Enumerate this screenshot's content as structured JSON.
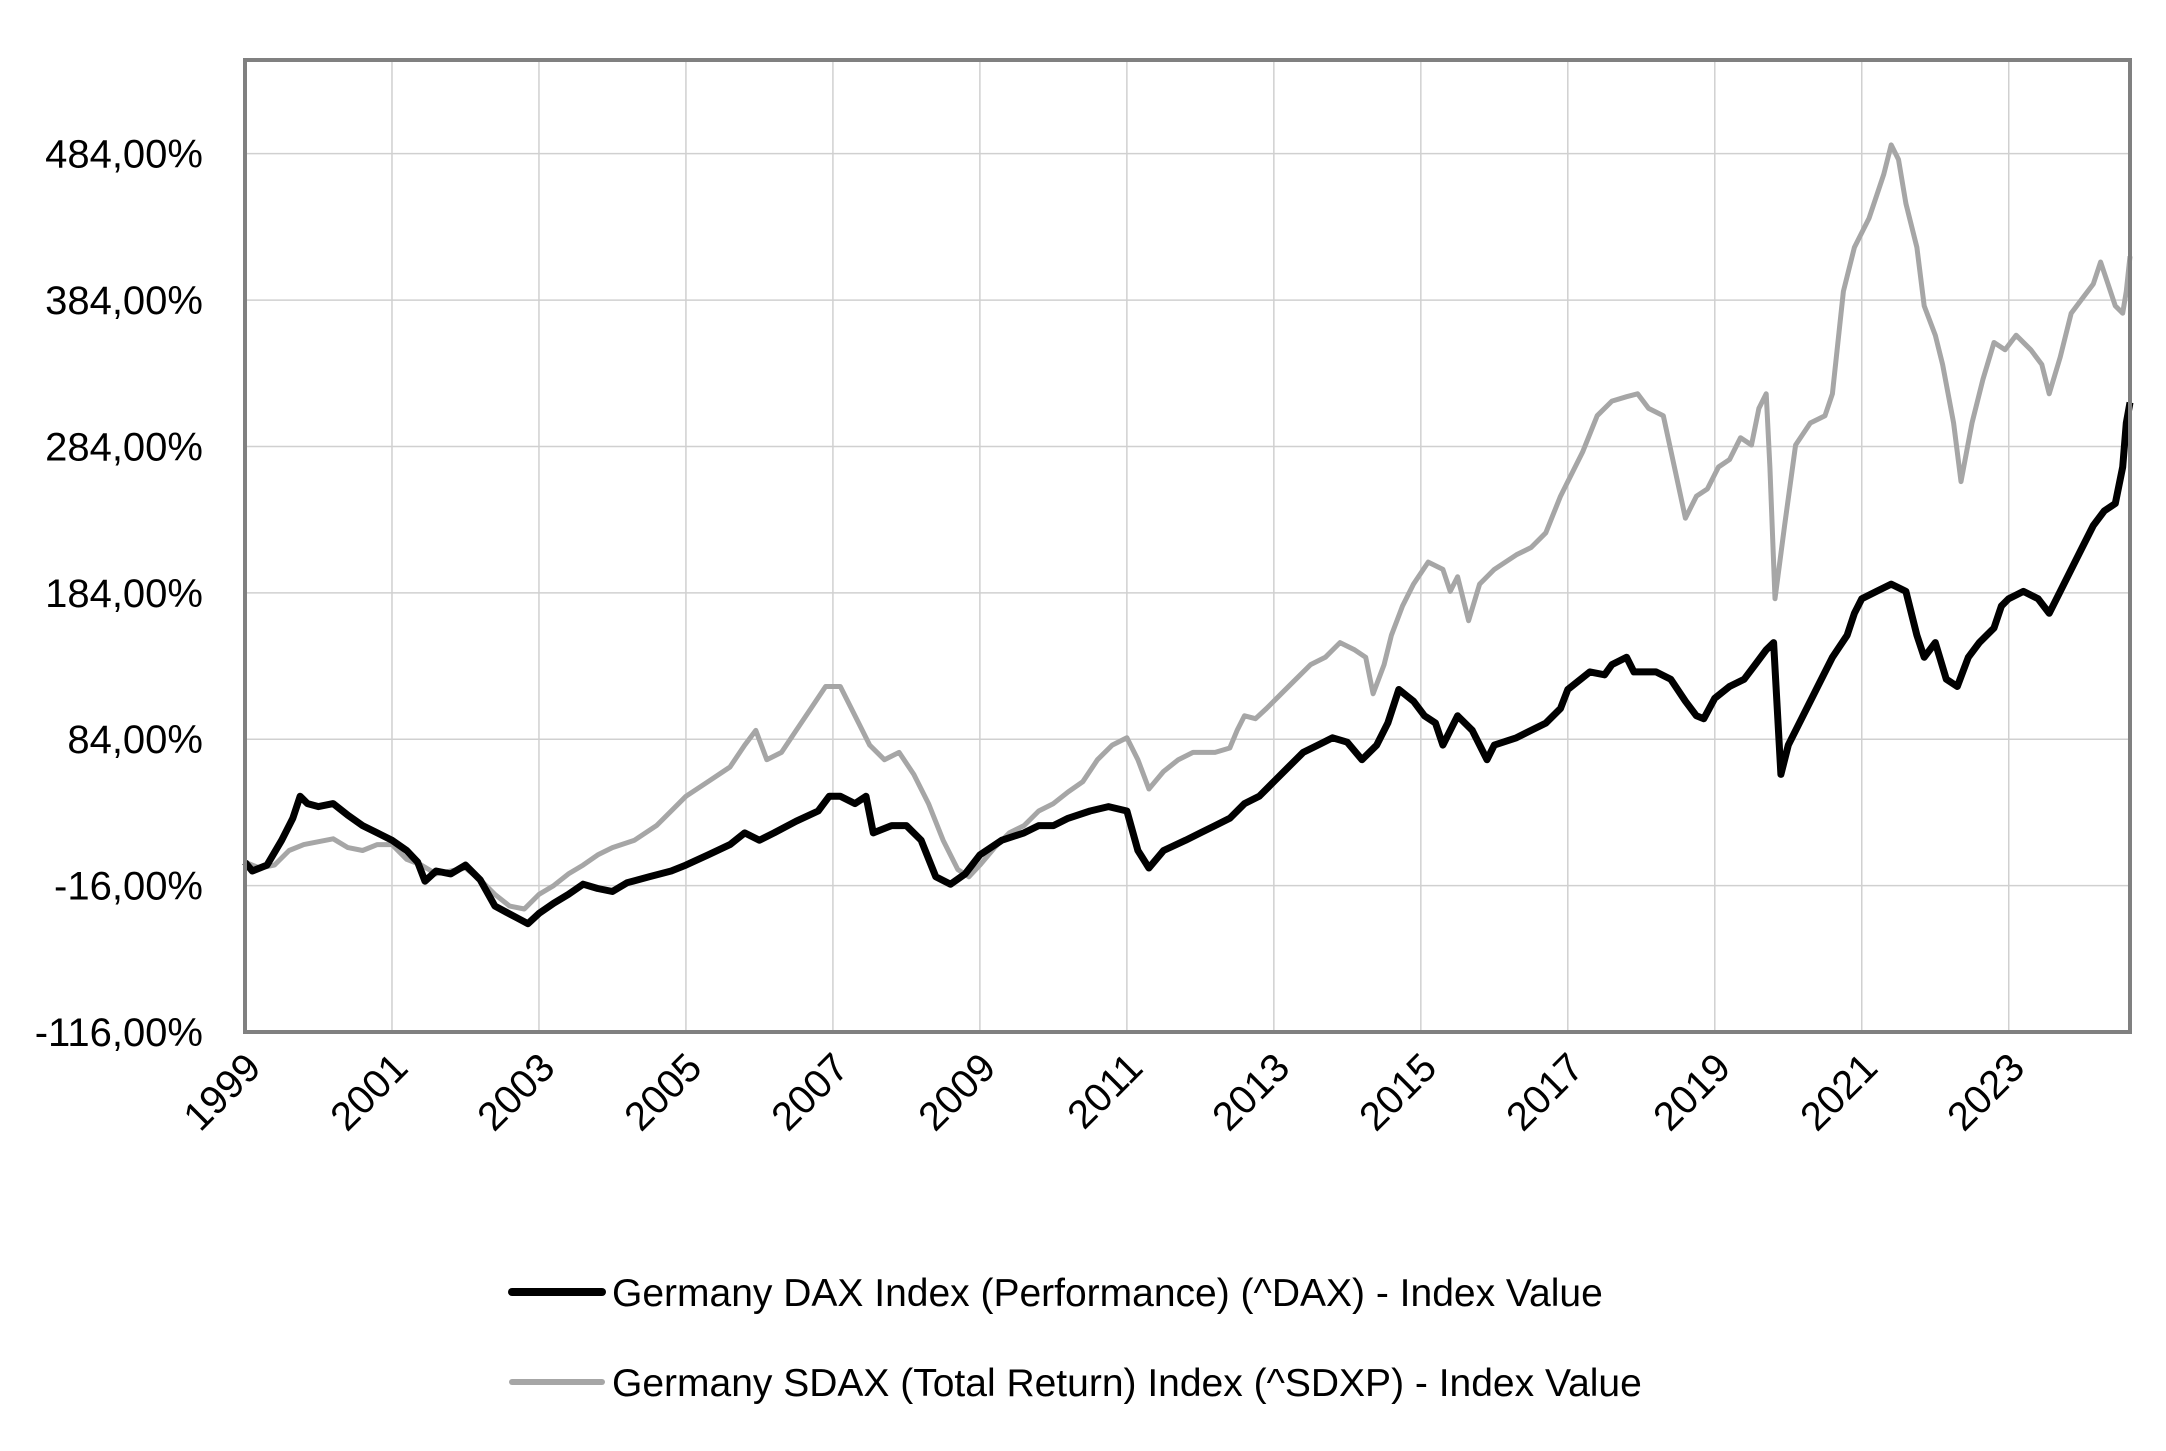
{
  "chart_data": {
    "type": "line",
    "title": "",
    "xlabel": "",
    "ylabel": "",
    "x_range": [
      1999.0,
      2024.65
    ],
    "y_range": [
      -116,
      548
    ],
    "y_ticks": [
      -116,
      -16,
      84,
      184,
      284,
      384,
      484
    ],
    "y_tick_labels": [
      "-116,00%",
      "-16,00%",
      "84,00%",
      "184,00%",
      "284,00%",
      "384,00%",
      "484,00%"
    ],
    "x_ticks": [
      1999,
      2001,
      2003,
      2005,
      2007,
      2009,
      2011,
      2013,
      2015,
      2017,
      2019,
      2021,
      2023
    ],
    "x_tick_labels": [
      "1999",
      "2001",
      "2003",
      "2005",
      "2007",
      "2009",
      "2011",
      "2013",
      "2015",
      "2017",
      "2019",
      "2021",
      "2023"
    ],
    "grid": true,
    "legend_position": "bottom-center",
    "series": [
      {
        "name": "Germany DAX Index (Performance) (^DAX) - Index Value",
        "color": "#000000",
        "points": [
          [
            1999.0,
            0
          ],
          [
            1999.1,
            -6
          ],
          [
            1999.3,
            -2
          ],
          [
            1999.5,
            15
          ],
          [
            1999.65,
            30
          ],
          [
            1999.75,
            45
          ],
          [
            1999.85,
            40
          ],
          [
            2000.0,
            38
          ],
          [
            2000.2,
            40
          ],
          [
            2000.4,
            32
          ],
          [
            2000.6,
            25
          ],
          [
            2000.8,
            20
          ],
          [
            2001.0,
            15
          ],
          [
            2001.2,
            8
          ],
          [
            2001.35,
            0
          ],
          [
            2001.45,
            -13
          ],
          [
            2001.6,
            -6
          ],
          [
            2001.8,
            -8
          ],
          [
            2002.0,
            -2
          ],
          [
            2002.2,
            -12
          ],
          [
            2002.4,
            -30
          ],
          [
            2002.55,
            -34
          ],
          [
            2002.7,
            -38
          ],
          [
            2002.85,
            -42
          ],
          [
            2003.0,
            -35
          ],
          [
            2003.2,
            -28
          ],
          [
            2003.4,
            -22
          ],
          [
            2003.6,
            -15
          ],
          [
            2003.8,
            -18
          ],
          [
            2004.0,
            -20
          ],
          [
            2004.2,
            -14
          ],
          [
            2004.5,
            -10
          ],
          [
            2004.8,
            -6
          ],
          [
            2005.0,
            -2
          ],
          [
            2005.3,
            5
          ],
          [
            2005.6,
            12
          ],
          [
            2005.8,
            20
          ],
          [
            2006.0,
            15
          ],
          [
            2006.2,
            20
          ],
          [
            2006.5,
            28
          ],
          [
            2006.8,
            35
          ],
          [
            2006.95,
            45
          ],
          [
            2007.1,
            45
          ],
          [
            2007.3,
            40
          ],
          [
            2007.45,
            45
          ],
          [
            2007.55,
            20
          ],
          [
            2007.8,
            25
          ],
          [
            2008.0,
            25
          ],
          [
            2008.2,
            15
          ],
          [
            2008.4,
            -10
          ],
          [
            2008.6,
            -15
          ],
          [
            2008.8,
            -8
          ],
          [
            2009.0,
            5
          ],
          [
            2009.3,
            15
          ],
          [
            2009.6,
            20
          ],
          [
            2009.8,
            25
          ],
          [
            2010.0,
            25
          ],
          [
            2010.2,
            30
          ],
          [
            2010.5,
            35
          ],
          [
            2010.75,
            38
          ],
          [
            2011.0,
            35
          ],
          [
            2011.15,
            8
          ],
          [
            2011.3,
            -4
          ],
          [
            2011.5,
            8
          ],
          [
            2011.8,
            15
          ],
          [
            2012.0,
            20
          ],
          [
            2012.2,
            25
          ],
          [
            2012.4,
            30
          ],
          [
            2012.6,
            40
          ],
          [
            2012.8,
            45
          ],
          [
            2013.0,
            55
          ],
          [
            2013.2,
            65
          ],
          [
            2013.4,
            75
          ],
          [
            2013.6,
            80
          ],
          [
            2013.8,
            85
          ],
          [
            2014.0,
            82
          ],
          [
            2014.2,
            70
          ],
          [
            2014.4,
            80
          ],
          [
            2014.55,
            95
          ],
          [
            2014.7,
            118
          ],
          [
            2014.9,
            110
          ],
          [
            2015.05,
            100
          ],
          [
            2015.2,
            95
          ],
          [
            2015.3,
            80
          ],
          [
            2015.5,
            100
          ],
          [
            2015.7,
            90
          ],
          [
            2015.9,
            70
          ],
          [
            2016.0,
            80
          ],
          [
            2016.3,
            85
          ],
          [
            2016.5,
            90
          ],
          [
            2016.7,
            95
          ],
          [
            2016.9,
            105
          ],
          [
            2017.0,
            118
          ],
          [
            2017.3,
            130
          ],
          [
            2017.5,
            128
          ],
          [
            2017.6,
            135
          ],
          [
            2017.8,
            140
          ],
          [
            2017.9,
            130
          ],
          [
            2018.0,
            130
          ],
          [
            2018.2,
            130
          ],
          [
            2018.4,
            125
          ],
          [
            2018.6,
            110
          ],
          [
            2018.75,
            100
          ],
          [
            2018.85,
            98
          ],
          [
            2019.0,
            112
          ],
          [
            2019.2,
            120
          ],
          [
            2019.4,
            125
          ],
          [
            2019.55,
            135
          ],
          [
            2019.7,
            145
          ],
          [
            2019.8,
            150
          ],
          [
            2019.9,
            60
          ],
          [
            2020.0,
            80
          ],
          [
            2020.2,
            100
          ],
          [
            2020.4,
            120
          ],
          [
            2020.6,
            140
          ],
          [
            2020.8,
            155
          ],
          [
            2020.9,
            170
          ],
          [
            2021.0,
            180
          ],
          [
            2021.2,
            185
          ],
          [
            2021.4,
            190
          ],
          [
            2021.6,
            185
          ],
          [
            2021.75,
            155
          ],
          [
            2021.85,
            140
          ],
          [
            2022.0,
            150
          ],
          [
            2022.15,
            125
          ],
          [
            2022.3,
            120
          ],
          [
            2022.45,
            140
          ],
          [
            2022.6,
            150
          ],
          [
            2022.8,
            160
          ],
          [
            2022.9,
            175
          ],
          [
            2023.0,
            180
          ],
          [
            2023.2,
            185
          ],
          [
            2023.4,
            180
          ],
          [
            2023.55,
            170
          ],
          [
            2023.7,
            185
          ],
          [
            2023.85,
            200
          ],
          [
            2024.0,
            215
          ],
          [
            2024.15,
            230
          ],
          [
            2024.3,
            240
          ],
          [
            2024.45,
            245
          ],
          [
            2024.55,
            270
          ],
          [
            2024.6,
            300
          ],
          [
            2024.65,
            314
          ]
        ]
      },
      {
        "name": "Germany SDAX (Total Return) Index (^SDXP) - Index Value",
        "color": "#a6a6a6",
        "points": [
          [
            1999.0,
            0
          ],
          [
            1999.2,
            -4
          ],
          [
            1999.4,
            -2
          ],
          [
            1999.6,
            8
          ],
          [
            1999.8,
            12
          ],
          [
            2000.0,
            14
          ],
          [
            2000.2,
            16
          ],
          [
            2000.4,
            10
          ],
          [
            2000.6,
            8
          ],
          [
            2000.8,
            12
          ],
          [
            2001.0,
            12
          ],
          [
            2001.2,
            2
          ],
          [
            2001.4,
            -2
          ],
          [
            2001.6,
            -8
          ],
          [
            2001.8,
            -6
          ],
          [
            2002.0,
            -4
          ],
          [
            2002.2,
            -12
          ],
          [
            2002.4,
            -22
          ],
          [
            2002.6,
            -30
          ],
          [
            2002.8,
            -32
          ],
          [
            2003.0,
            -22
          ],
          [
            2003.2,
            -16
          ],
          [
            2003.4,
            -8
          ],
          [
            2003.6,
            -2
          ],
          [
            2003.8,
            5
          ],
          [
            2004.0,
            10
          ],
          [
            2004.3,
            15
          ],
          [
            2004.6,
            25
          ],
          [
            2004.8,
            35
          ],
          [
            2005.0,
            45
          ],
          [
            2005.3,
            55
          ],
          [
            2005.6,
            65
          ],
          [
            2005.8,
            80
          ],
          [
            2005.95,
            90
          ],
          [
            2006.1,
            70
          ],
          [
            2006.3,
            75
          ],
          [
            2006.5,
            90
          ],
          [
            2006.7,
            105
          ],
          [
            2006.9,
            120
          ],
          [
            2007.1,
            120
          ],
          [
            2007.3,
            100
          ],
          [
            2007.5,
            80
          ],
          [
            2007.7,
            70
          ],
          [
            2007.9,
            75
          ],
          [
            2008.1,
            60
          ],
          [
            2008.3,
            40
          ],
          [
            2008.5,
            15
          ],
          [
            2008.7,
            -5
          ],
          [
            2008.85,
            -10
          ],
          [
            2009.0,
            -2
          ],
          [
            2009.2,
            10
          ],
          [
            2009.4,
            20
          ],
          [
            2009.6,
            25
          ],
          [
            2009.8,
            35
          ],
          [
            2010.0,
            40
          ],
          [
            2010.2,
            48
          ],
          [
            2010.4,
            55
          ],
          [
            2010.6,
            70
          ],
          [
            2010.8,
            80
          ],
          [
            2011.0,
            85
          ],
          [
            2011.15,
            70
          ],
          [
            2011.3,
            50
          ],
          [
            2011.5,
            62
          ],
          [
            2011.7,
            70
          ],
          [
            2011.9,
            75
          ],
          [
            2012.2,
            75
          ],
          [
            2012.4,
            78
          ],
          [
            2012.5,
            90
          ],
          [
            2012.6,
            100
          ],
          [
            2012.75,
            98
          ],
          [
            2012.9,
            105
          ],
          [
            2013.1,
            115
          ],
          [
            2013.3,
            125
          ],
          [
            2013.5,
            135
          ],
          [
            2013.7,
            140
          ],
          [
            2013.9,
            150
          ],
          [
            2014.1,
            145
          ],
          [
            2014.25,
            140
          ],
          [
            2014.35,
            115
          ],
          [
            2014.5,
            135
          ],
          [
            2014.6,
            155
          ],
          [
            2014.75,
            175
          ],
          [
            2014.9,
            190
          ],
          [
            2015.1,
            205
          ],
          [
            2015.3,
            200
          ],
          [
            2015.4,
            185
          ],
          [
            2015.5,
            195
          ],
          [
            2015.65,
            165
          ],
          [
            2015.8,
            190
          ],
          [
            2016.0,
            200
          ],
          [
            2016.3,
            210
          ],
          [
            2016.5,
            215
          ],
          [
            2016.7,
            225
          ],
          [
            2016.9,
            250
          ],
          [
            2017.0,
            260
          ],
          [
            2017.2,
            280
          ],
          [
            2017.4,
            305
          ],
          [
            2017.6,
            315
          ],
          [
            2017.8,
            318
          ],
          [
            2017.95,
            320
          ],
          [
            2018.1,
            310
          ],
          [
            2018.3,
            305
          ],
          [
            2018.45,
            270
          ],
          [
            2018.6,
            235
          ],
          [
            2018.75,
            250
          ],
          [
            2018.9,
            255
          ],
          [
            2019.05,
            270
          ],
          [
            2019.2,
            275
          ],
          [
            2019.35,
            290
          ],
          [
            2019.5,
            285
          ],
          [
            2019.6,
            310
          ],
          [
            2019.7,
            320
          ],
          [
            2019.75,
            270
          ],
          [
            2019.82,
            180
          ],
          [
            2019.95,
            230
          ],
          [
            2020.1,
            285
          ],
          [
            2020.3,
            300
          ],
          [
            2020.5,
            305
          ],
          [
            2020.6,
            320
          ],
          [
            2020.75,
            390
          ],
          [
            2020.9,
            420
          ],
          [
            2021.1,
            440
          ],
          [
            2021.3,
            470
          ],
          [
            2021.4,
            490
          ],
          [
            2021.5,
            480
          ],
          [
            2021.6,
            450
          ],
          [
            2021.75,
            420
          ],
          [
            2021.85,
            380
          ],
          [
            2022.0,
            360
          ],
          [
            2022.1,
            340
          ],
          [
            2022.25,
            300
          ],
          [
            2022.35,
            260
          ],
          [
            2022.5,
            300
          ],
          [
            2022.65,
            330
          ],
          [
            2022.8,
            355
          ],
          [
            2022.95,
            350
          ],
          [
            2023.1,
            360
          ],
          [
            2023.3,
            350
          ],
          [
            2023.45,
            340
          ],
          [
            2023.55,
            320
          ],
          [
            2023.7,
            345
          ],
          [
            2023.85,
            375
          ],
          [
            2024.0,
            385
          ],
          [
            2024.15,
            395
          ],
          [
            2024.25,
            410
          ],
          [
            2024.35,
            395
          ],
          [
            2024.45,
            380
          ],
          [
            2024.55,
            375
          ],
          [
            2024.6,
            390
          ],
          [
            2024.65,
            414
          ]
        ]
      }
    ]
  }
}
